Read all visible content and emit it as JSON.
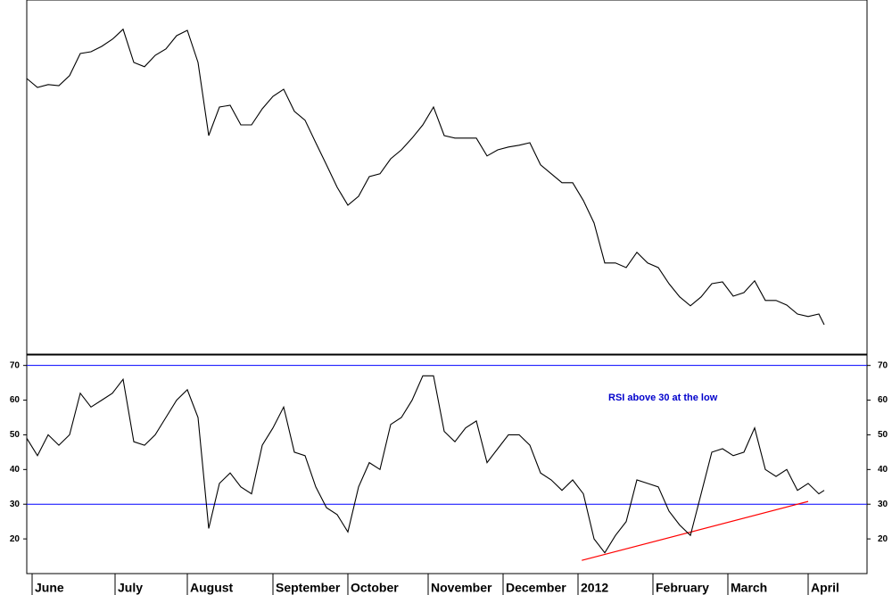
{
  "chart_data": [
    {
      "type": "line",
      "x": [
        0,
        2,
        4,
        6,
        8,
        10,
        12,
        14,
        16,
        18,
        20,
        22,
        24,
        26,
        28,
        30,
        32,
        34,
        36,
        38,
        40,
        42,
        44,
        46,
        48,
        50,
        52,
        54,
        56,
        58,
        60,
        62,
        64,
        66,
        68,
        70,
        72,
        74,
        76,
        78,
        80,
        82,
        84,
        86,
        88,
        90,
        92,
        94,
        96,
        98,
        100,
        102,
        104,
        106,
        108,
        110,
        112,
        114,
        116,
        118,
        120,
        122,
        124,
        126,
        128,
        130,
        132,
        134,
        136,
        138,
        140,
        142,
        144,
        146,
        148,
        149
      ],
      "series": [
        {
          "color": "#000000",
          "values": [
            78,
            75.5,
            76.3,
            76,
            78.8,
            85,
            85.5,
            87,
            89,
            91.8,
            82.5,
            81.3,
            84.5,
            86.3,
            90,
            91.5,
            82.5,
            62,
            70,
            70.5,
            65,
            65,
            69.5,
            73,
            75,
            68.8,
            66.3,
            60,
            53.8,
            47.5,
            42.5,
            45,
            50.5,
            51.3,
            55.5,
            58,
            61.3,
            65,
            70,
            62,
            61.3,
            61.3,
            61.3,
            56.3,
            58,
            58.8,
            59.3,
            60,
            53.8,
            51.3,
            48.8,
            48.8,
            43.8,
            37.5,
            26.3,
            26.3,
            25,
            29.3,
            26.3,
            25,
            20.5,
            16.8,
            14.3,
            16.8,
            20.5,
            21,
            17,
            18,
            21.3,
            15.8,
            15.8,
            14.5,
            12,
            11.3,
            12,
            9
          ]
        }
      ],
      "xlim": [
        0,
        157
      ],
      "ylim": [
        0,
        100
      ]
    },
    {
      "type": "line",
      "annotation": "RSI above 30 at the low",
      "x": [
        0,
        2,
        4,
        6,
        8,
        10,
        12,
        14,
        16,
        18,
        20,
        22,
        24,
        26,
        28,
        30,
        32,
        34,
        36,
        38,
        40,
        42,
        44,
        46,
        48,
        50,
        52,
        54,
        56,
        58,
        60,
        62,
        64,
        66,
        68,
        70,
        72,
        74,
        76,
        78,
        80,
        82,
        84,
        86,
        88,
        90,
        92,
        94,
        96,
        98,
        100,
        102,
        104,
        106,
        108,
        110,
        112,
        114,
        116,
        118,
        120,
        122,
        124,
        126,
        128,
        130,
        132,
        134,
        136,
        138,
        140,
        142,
        144,
        146,
        148,
        149
      ],
      "series": [
        {
          "color": "#000000",
          "values": [
            49,
            44,
            50,
            47,
            50,
            62,
            58,
            60,
            62,
            66,
            48,
            47,
            50,
            55,
            60,
            63,
            55,
            23,
            36,
            39,
            35,
            33,
            47,
            52,
            58,
            45,
            44,
            35,
            29,
            27,
            22,
            35,
            42,
            40,
            53,
            55,
            60,
            67,
            67,
            51,
            48,
            52,
            54,
            42,
            46,
            50,
            50,
            47,
            39,
            37,
            34,
            37,
            33,
            20,
            16,
            21,
            25,
            37,
            36,
            35,
            28,
            24,
            21,
            33,
            45,
            46,
            44,
            45,
            52,
            40,
            38,
            40,
            34,
            36,
            33,
            34
          ]
        }
      ],
      "hlines": [
        70,
        30
      ],
      "hline_color": "#0000ff",
      "trendline": {
        "x": [
          103.7,
          146
        ],
        "values": [
          13.8,
          30.8
        ],
        "color": "#ff0000"
      },
      "xlim": [
        0,
        157
      ],
      "ylim": [
        10,
        73
      ],
      "yticks": [
        20,
        30,
        40,
        50,
        60,
        70
      ],
      "xticks": [
        {
          "value": 1,
          "label": "June"
        },
        {
          "value": 16.5,
          "label": "July"
        },
        {
          "value": 30,
          "label": "August"
        },
        {
          "value": 46,
          "label": "September"
        },
        {
          "value": 60,
          "label": "October"
        },
        {
          "value": 75,
          "label": "November"
        },
        {
          "value": 89,
          "label": "December"
        },
        {
          "value": 103,
          "label": "2012"
        },
        {
          "value": 117,
          "label": "February"
        },
        {
          "value": 131,
          "label": "March"
        },
        {
          "value": 146,
          "label": "April"
        }
      ]
    }
  ]
}
